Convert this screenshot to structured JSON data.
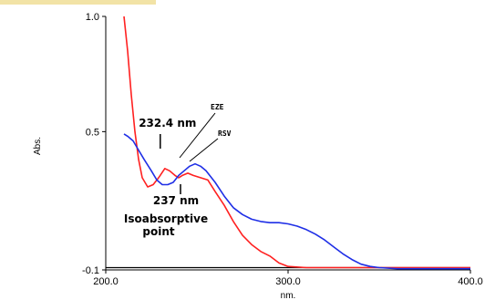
{
  "colors": {
    "corner_bar": "#f2e3a6",
    "eze": "#ff2020",
    "rsv": "#1f2fe6",
    "baseline": "#000000"
  },
  "chart_data": {
    "type": "line",
    "xlabel": "nm.",
    "ylabel": "Abs.",
    "xlim": [
      200.0,
      400.0
    ],
    "ylim": [
      -0.1,
      1.0
    ],
    "xticks": [
      "200.0",
      "300.0",
      "400.0"
    ],
    "yticks": [
      "1.0",
      "0.5",
      "-0.1"
    ],
    "xtick_values": [
      200,
      300,
      400
    ],
    "ytick_values": [
      1.0,
      0.5,
      -0.1
    ],
    "baseline_y": -0.09,
    "series": [
      {
        "name": "EZE",
        "color": "#ff2020",
        "x": [
          210,
          212,
          214,
          216,
          218,
          220,
          223,
          226,
          229,
          232.4,
          235,
          238,
          240,
          242,
          245,
          248,
          252,
          256,
          260,
          265,
          270,
          275,
          280,
          285,
          290,
          295,
          300,
          310,
          320,
          330,
          340,
          350,
          360,
          380,
          400
        ],
        "y": [
          1.0,
          0.85,
          0.66,
          0.5,
          0.38,
          0.3,
          0.26,
          0.27,
          0.3,
          0.34,
          0.33,
          0.31,
          0.3,
          0.31,
          0.32,
          0.31,
          0.3,
          0.29,
          0.24,
          0.18,
          0.11,
          0.05,
          0.01,
          -0.02,
          -0.04,
          -0.07,
          -0.085,
          -0.09,
          -0.09,
          -0.09,
          -0.09,
          -0.09,
          -0.09,
          -0.09,
          -0.09
        ]
      },
      {
        "name": "RSV",
        "color": "#1f2fe6",
        "x": [
          210,
          212,
          215,
          218,
          221,
          225,
          228,
          231,
          234,
          237,
          240,
          243,
          246,
          249,
          252,
          255,
          260,
          265,
          270,
          275,
          280,
          285,
          290,
          295,
          300,
          305,
          310,
          315,
          320,
          325,
          330,
          335,
          340,
          345,
          350,
          360,
          380,
          400
        ],
        "y": [
          0.49,
          0.48,
          0.46,
          0.42,
          0.38,
          0.33,
          0.29,
          0.27,
          0.27,
          0.28,
          0.31,
          0.33,
          0.35,
          0.36,
          0.35,
          0.33,
          0.28,
          0.22,
          0.17,
          0.14,
          0.12,
          0.11,
          0.105,
          0.105,
          0.1,
          0.09,
          0.075,
          0.055,
          0.03,
          0.0,
          -0.03,
          -0.055,
          -0.075,
          -0.085,
          -0.09,
          -0.095,
          -0.095,
          -0.095
        ]
      }
    ],
    "annotations": {
      "peak_label": "232.4 nm",
      "iso_wavelength": "237 nm",
      "iso_line1": "Isoabsorptive",
      "iso_line2": "point",
      "eze_label": "EZE",
      "rsv_label": "RSV"
    }
  }
}
